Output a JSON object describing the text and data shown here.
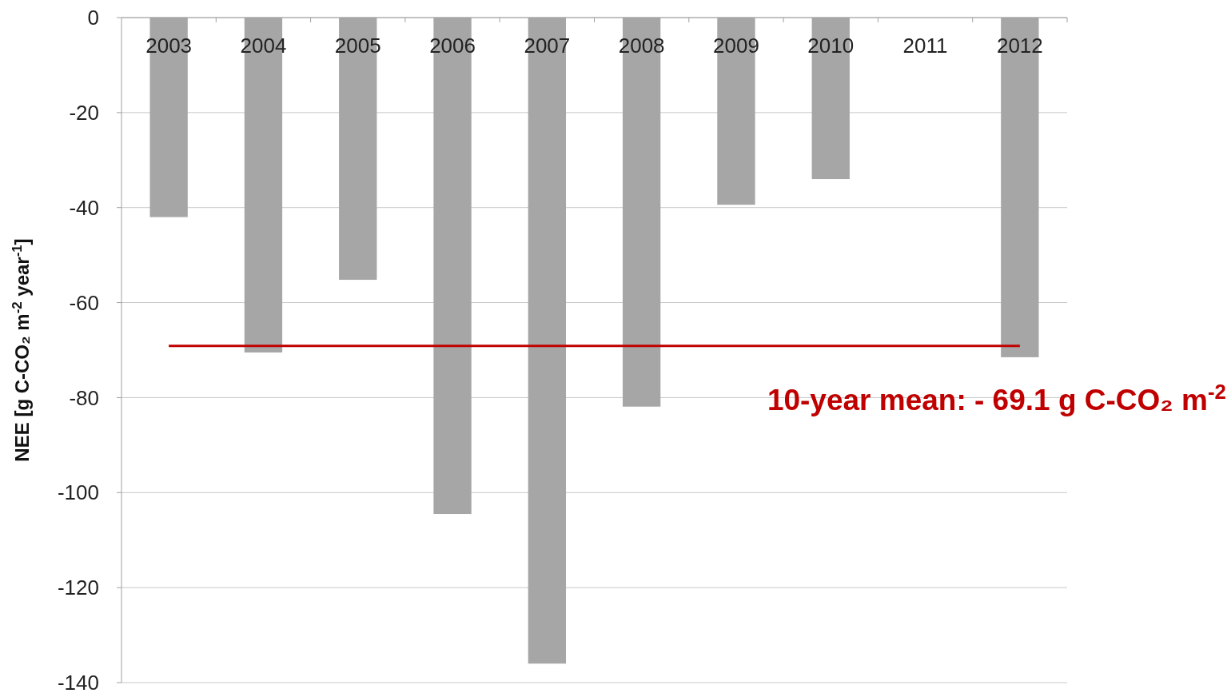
{
  "chart_data": {
    "type": "bar",
    "categories": [
      "2003",
      "2004",
      "2005",
      "2006",
      "2007",
      "2008",
      "2009",
      "2010",
      "2011",
      "2012"
    ],
    "values": [
      -42,
      -70.5,
      -55.2,
      -104.5,
      -136,
      -81.9,
      -39.4,
      -34,
      null,
      -71.5
    ],
    "color": "#a6a6a6",
    "ylabel": "NEE [g C-CO₂ m$^{-2}$ year$^{-1}$]",
    "ylim": [
      -140,
      0
    ],
    "yticks": [
      0,
      -20,
      -40,
      -60,
      -80,
      -100,
      -120,
      -140
    ],
    "grid": "y",
    "ref_lines": [
      {
        "axis": "y",
        "value": -69.1,
        "label": "10-year mean: - 69.1 g C-CO₂ m$^{-2}$",
        "color": "#c00000"
      }
    ]
  }
}
